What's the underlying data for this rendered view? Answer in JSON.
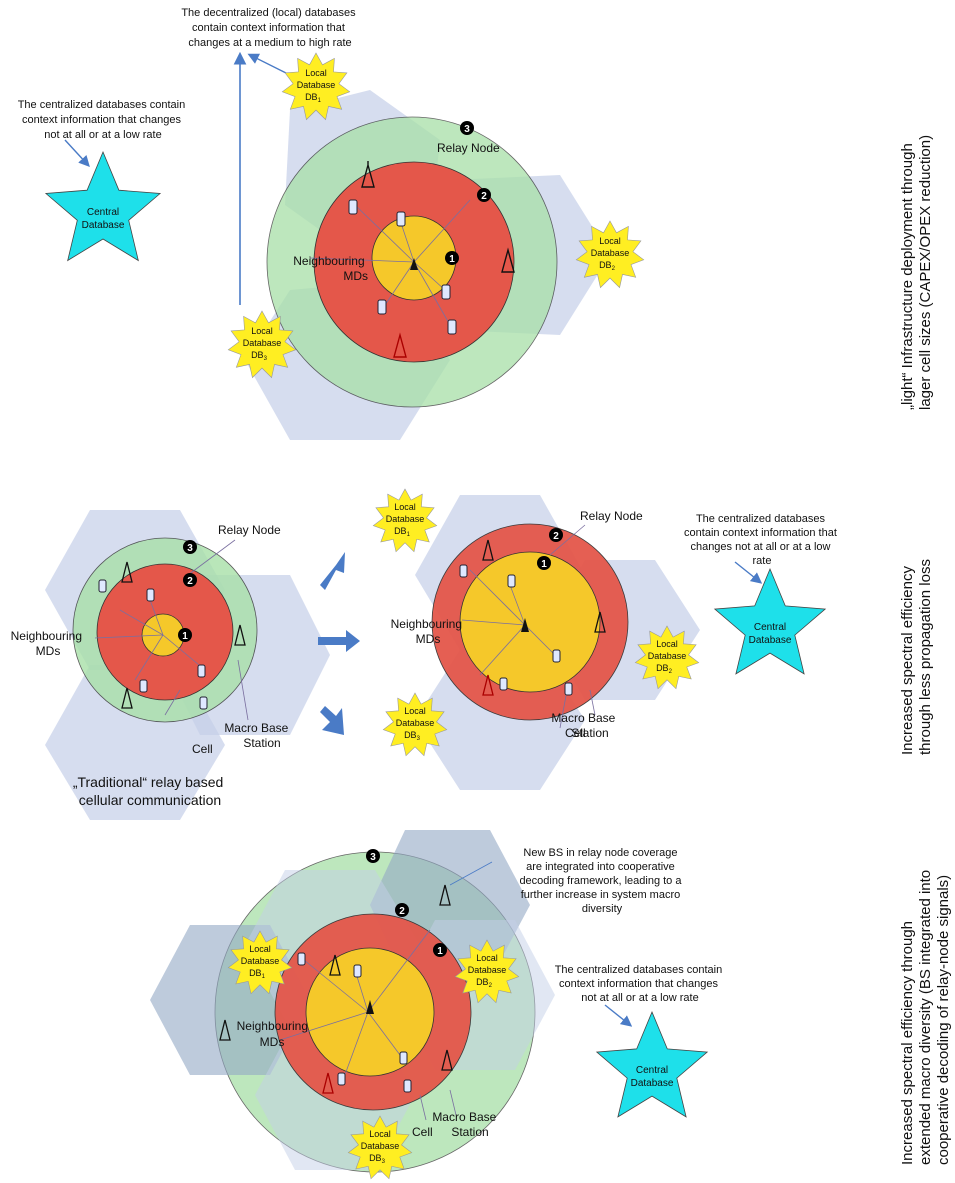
{
  "colors": {
    "hex_fill": "#c4cfe8",
    "outer_green": "#a8e0a8",
    "mid_red": "#e4574a",
    "inner_yellow": "#f5c82a",
    "central_star": "#1ee0ea",
    "local_star": "#ffee22",
    "arrow": "#4a7bc6"
  },
  "panel_top": {
    "decentral_note": [
      "The decentralized (local) databases",
      "contain context information that",
      "changes at a medium to high rate"
    ],
    "central_note": [
      "The centralized databases contain",
      "context information that changes",
      "not at all or at a low rate"
    ],
    "central_db": [
      "Central",
      "Database"
    ],
    "local_db1": [
      "Local",
      "Database",
      "DB",
      "1"
    ],
    "local_db2": [
      "Local",
      "Database",
      "DB",
      "2"
    ],
    "local_db3": [
      "Local",
      "Database",
      "DB",
      "3"
    ],
    "relay_node": "Relay Node",
    "neighbouring": [
      "Neighbouring",
      "MDs"
    ],
    "markers": [
      "1",
      "2",
      "3"
    ],
    "side_label": [
      "„light“   Infrastructure   deployment   through",
      "lager cell sizes (CAPEX/OPEX reduction)"
    ]
  },
  "panel_mid": {
    "relay_node_left": "Relay Node",
    "relay_node_right": "Relay Node",
    "neighbouring_left": [
      "Neighbouring",
      "MDs"
    ],
    "neighbouring_right": [
      "Neighbouring",
      "MDs"
    ],
    "macro_left": [
      "Macro Base",
      "Station"
    ],
    "macro_right": [
      "Macro Base",
      "Station"
    ],
    "cell_left": "Cell",
    "cell_right": "Cell",
    "traditional": [
      "„Traditional“ relay based",
      "cellular communication"
    ],
    "central_note": [
      "The centralized databases",
      "contain context information that",
      "changes not at all or at a low",
      "rate"
    ],
    "central_db": [
      "Central",
      "Database"
    ],
    "local_db1": [
      "Local",
      "Database",
      "DB",
      "1"
    ],
    "local_db2": [
      "Local",
      "Database",
      "DB",
      "2"
    ],
    "local_db3": [
      "Local",
      "Database",
      "DB",
      "3"
    ],
    "markers": [
      "1",
      "2",
      "3"
    ],
    "side_label": [
      "Increased   spectral   efficiency",
      "through less propagation loss"
    ]
  },
  "panel_bot": {
    "new_bs_note": [
      "New BS in relay node coverage",
      "are integrated into cooperative",
      "decoding framework, leading to a",
      "further increase in system macro",
      "diversity"
    ],
    "central_note": [
      "The centralized databases contain",
      "context information that changes",
      "not at all or at a low rate"
    ],
    "central_db": [
      "Central",
      "Database"
    ],
    "local_db1": [
      "Local",
      "Database",
      "DB",
      "1"
    ],
    "local_db2": [
      "Local",
      "Database",
      "DB",
      "2"
    ],
    "local_db3": [
      "Local",
      "Database",
      "DB",
      "3"
    ],
    "neighbouring": [
      "Neighbouring",
      "MDs"
    ],
    "macro": [
      "Macro Base",
      "Station"
    ],
    "cell": "Cell",
    "markers": [
      "1",
      "2",
      "3"
    ],
    "side_label": [
      "Increased      spectral      efficiency      through",
      "extended macro diversity (BS integrated into",
      "cooperative decoding of relay-node signals)"
    ]
  }
}
